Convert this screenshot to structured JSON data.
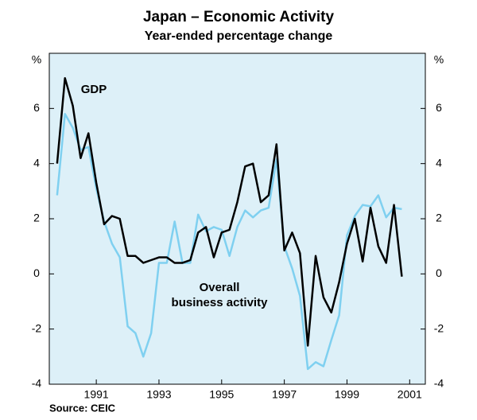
{
  "chart_data": {
    "type": "line",
    "title": "Japan –  Economic Activity",
    "subtitle": "Year-ended percentage change",
    "y_unit_left": "%",
    "y_unit_right": "%",
    "source": "Source:    CEIC",
    "annotations": [
      "GDP",
      "Overall",
      "business activity"
    ],
    "x": [
      1990.25,
      1990.5,
      1990.75,
      1991,
      1991.25,
      1991.5,
      1991.75,
      1992,
      1992.25,
      1992.5,
      1992.75,
      1993,
      1993.25,
      1993.5,
      1993.75,
      1994,
      1994.25,
      1994.5,
      1994.75,
      1995,
      1995.25,
      1995.5,
      1995.75,
      1996,
      1996.25,
      1996.5,
      1996.75,
      1997,
      1997.25,
      1997.5,
      1997.75,
      1998,
      1998.25,
      1998.5,
      1998.75,
      1999,
      1999.25,
      1999.5,
      1999.75,
      2000,
      2000.25,
      2000.5,
      2000.75,
      2001,
      2001.25
    ],
    "series": [
      {
        "color": "#000000",
        "values": [
          4.0,
          7.1,
          6.1,
          4.2,
          5.1,
          3.3,
          1.8,
          2.1,
          2.0,
          0.65,
          0.65,
          0.4,
          0.5,
          0.6,
          0.6,
          0.4,
          0.4,
          0.5,
          1.5,
          1.7,
          0.6,
          1.5,
          1.6,
          2.6,
          3.9,
          4.0,
          2.6,
          2.85,
          4.7,
          0.85,
          1.5,
          0.75,
          -2.6,
          0.65,
          -0.85,
          -1.4,
          -0.3,
          1.1,
          2.0,
          0.45,
          2.4,
          1.0,
          0.4,
          2.5,
          -0.1
        ]
      },
      {
        "color": "#7fd0f0",
        "values": [
          2.85,
          5.8,
          5.3,
          4.5,
          4.6,
          3.1,
          1.9,
          1.1,
          0.6,
          -1.9,
          -2.15,
          -3.0,
          -2.15,
          0.4,
          0.4,
          1.9,
          0.4,
          0.4,
          2.15,
          1.55,
          1.7,
          1.6,
          0.65,
          1.7,
          2.3,
          2.05,
          2.3,
          2.4,
          4.15,
          1.0,
          0.2,
          -0.8,
          -3.45,
          -3.2,
          -3.35,
          -2.4,
          -1.5,
          1.4,
          2.1,
          2.5,
          2.45,
          2.85,
          2.05,
          2.4,
          2.35
        ]
      }
    ],
    "xlim": [
      1990.0,
      2002.0
    ],
    "xticks": [
      {
        "value": 1991.5,
        "label": "1991"
      },
      {
        "value": 1993.5,
        "label": "1993"
      },
      {
        "value": 1995.5,
        "label": "1995"
      },
      {
        "value": 1997.5,
        "label": "1997"
      },
      {
        "value": 1999.5,
        "label": "1999"
      },
      {
        "value": 2001.5,
        "label": "2001"
      }
    ],
    "ylim": [
      -4,
      8
    ],
    "yticks": [
      -4,
      -2,
      0,
      2,
      4,
      6
    ],
    "grid": false
  }
}
